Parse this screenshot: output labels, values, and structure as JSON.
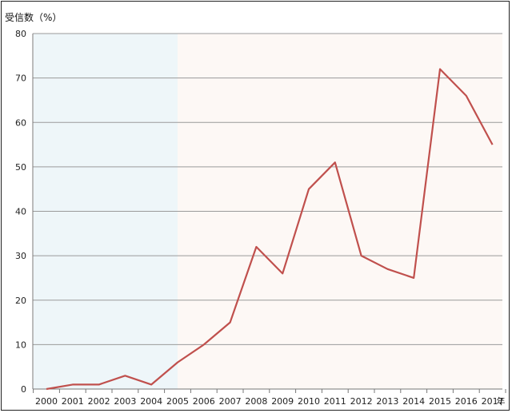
{
  "chart_data": {
    "type": "line",
    "ylabel": "受信数（%）",
    "x_unit": "年",
    "x": [
      "2000",
      "2001",
      "2002",
      "2003",
      "2004",
      "2005",
      "2006",
      "2007",
      "2008",
      "2009",
      "2010",
      "2011",
      "2012",
      "2013",
      "2014",
      "2015",
      "2016",
      "2017"
    ],
    "series": [
      {
        "values": [
          0,
          1,
          1,
          3,
          1,
          6,
          10,
          15,
          32,
          26,
          45,
          51,
          30,
          27,
          25,
          72,
          66,
          55
        ]
      }
    ],
    "ylim": [
      0,
      80
    ],
    "yticks": [
      0,
      10,
      20,
      30,
      40,
      50,
      60,
      70,
      80
    ],
    "grid": true,
    "shaded_regions": [
      {
        "x_start": "2000",
        "x_end": "2005",
        "color": "#eef6f9"
      },
      {
        "x_start": "2005",
        "x_end": "2017",
        "color": "#fdf8f5"
      }
    ],
    "line_color": "#c0504d"
  }
}
